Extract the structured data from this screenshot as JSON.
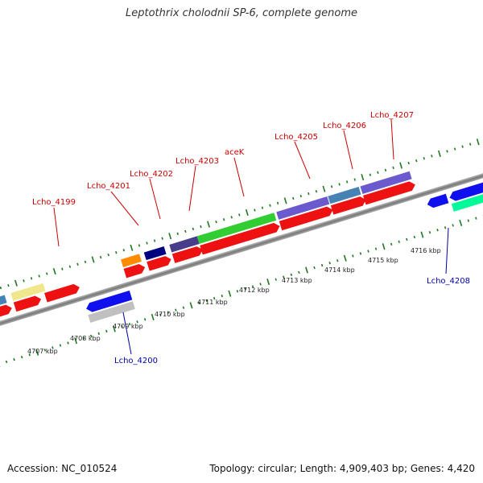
{
  "title": "Leptothrix cholodnii SP-6, complete genome",
  "footer": {
    "accession": "Accession: NC_010524",
    "summary": "Topology: circular; Length: 4,909,403 bp; Genes: 4,420"
  },
  "colors": {
    "label_top": "#cc0000",
    "label_bottom": "#0000aa",
    "cds_red": "#ee1111",
    "tick_green": "#227722",
    "backbone": "#888888"
  },
  "kbp_ticks": [
    "4707 kbp",
    "4708 kbp",
    "4709 kbp",
    "4710 kbp",
    "4711 kbp",
    "4712 kbp",
    "4713 kbp",
    "4714 kbp",
    "4715 kbp",
    "4716 kbp"
  ],
  "genes_top": [
    {
      "name": "Lcho_4199",
      "color": "#f0e68c"
    },
    {
      "name": "Lcho_4201",
      "color": "#ff8c00"
    },
    {
      "name": "Lcho_4202",
      "color": "#000080"
    },
    {
      "name": "Lcho_4203",
      "color": "#483d8b"
    },
    {
      "name": "aceK",
      "color": "#32cd32"
    },
    {
      "name": "Lcho_4205",
      "color": "#6a5acd"
    },
    {
      "name": "Lcho_4206",
      "color": "#4682b4"
    },
    {
      "name": "Lcho_4207",
      "color": "#6a5acd"
    }
  ],
  "genes_bottom": [
    {
      "name": "Lcho_4200",
      "color": "#c0c0c0"
    },
    {
      "name": "Lcho_4208",
      "color": "#00fa9a"
    }
  ]
}
